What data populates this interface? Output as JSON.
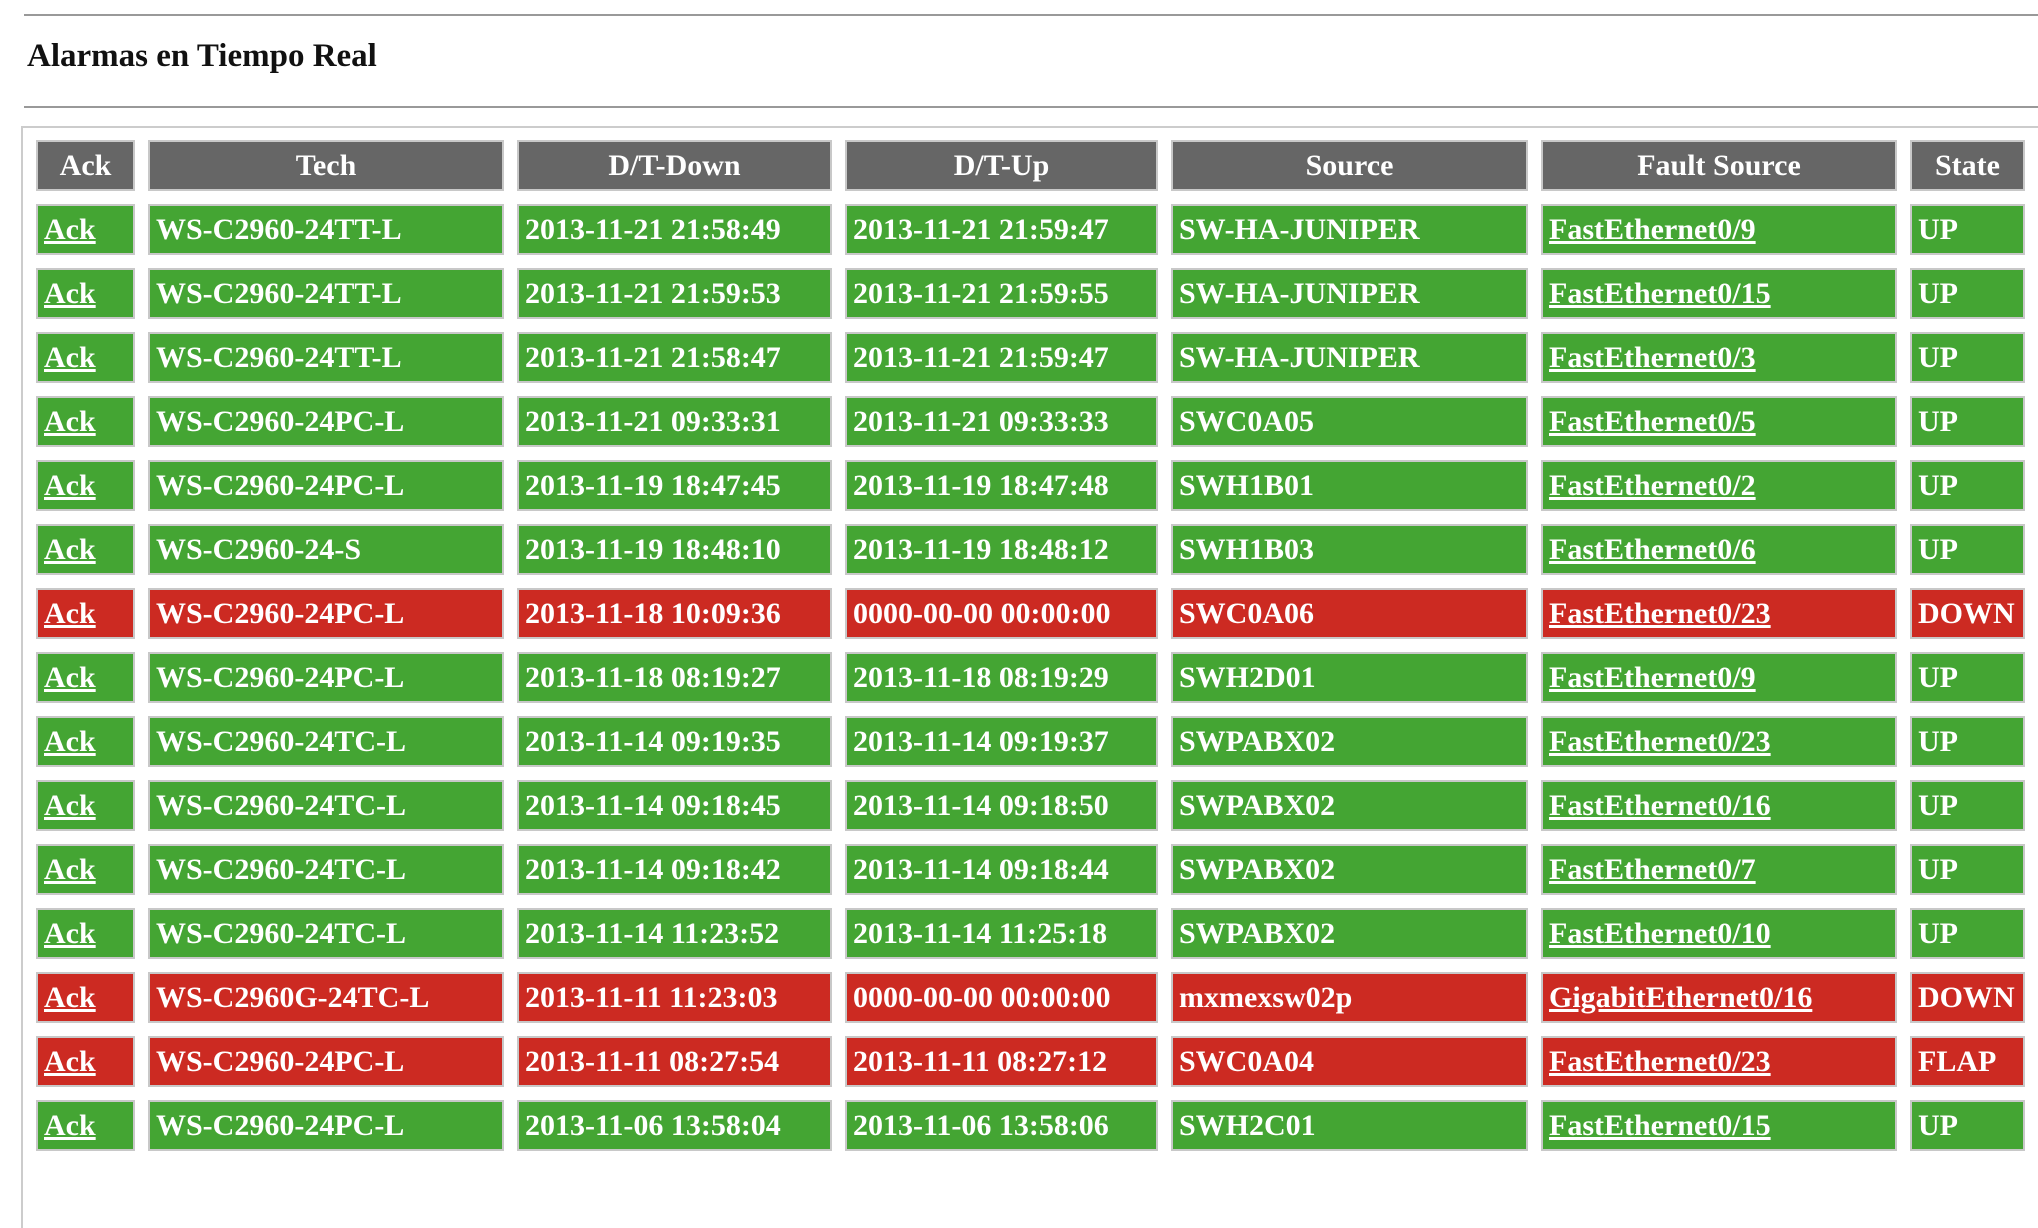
{
  "header": {
    "title": "Alarmas en Tiempo Real"
  },
  "table": {
    "columns": [
      "Ack",
      "Tech",
      "D/T-Down",
      "D/T-Up",
      "Source",
      "Fault Source",
      "State"
    ],
    "colors": {
      "header": "#666666",
      "UP": "#44a533",
      "DOWN": "#cc2a22",
      "FLAP": "#cc2a22"
    },
    "rows": [
      [
        "Ack",
        "WS-C2960-24TT-L",
        "2013-11-21 21:58:49",
        "2013-11-21 21:59:47",
        "SW-HA-JUNIPER",
        "FastEthernet0/9",
        "UP"
      ],
      [
        "Ack",
        "WS-C2960-24TT-L",
        "2013-11-21 21:59:53",
        "2013-11-21 21:59:55",
        "SW-HA-JUNIPER",
        "FastEthernet0/15",
        "UP"
      ],
      [
        "Ack",
        "WS-C2960-24TT-L",
        "2013-11-21 21:58:47",
        "2013-11-21 21:59:47",
        "SW-HA-JUNIPER",
        "FastEthernet0/3",
        "UP"
      ],
      [
        "Ack",
        "WS-C2960-24PC-L",
        "2013-11-21 09:33:31",
        "2013-11-21 09:33:33",
        "SWC0A05",
        "FastEthernet0/5",
        "UP"
      ],
      [
        "Ack",
        "WS-C2960-24PC-L",
        "2013-11-19 18:47:45",
        "2013-11-19 18:47:48",
        "SWH1B01",
        "FastEthernet0/2",
        "UP"
      ],
      [
        "Ack",
        "WS-C2960-24-S",
        "2013-11-19 18:48:10",
        "2013-11-19 18:48:12",
        "SWH1B03",
        "FastEthernet0/6",
        "UP"
      ],
      [
        "Ack",
        "WS-C2960-24PC-L",
        "2013-11-18 10:09:36",
        "0000-00-00 00:00:00",
        "SWC0A06",
        "FastEthernet0/23",
        "DOWN"
      ],
      [
        "Ack",
        "WS-C2960-24PC-L",
        "2013-11-18 08:19:27",
        "2013-11-18 08:19:29",
        "SWH2D01",
        "FastEthernet0/9",
        "UP"
      ],
      [
        "Ack",
        "WS-C2960-24TC-L",
        "2013-11-14 09:19:35",
        "2013-11-14 09:19:37",
        "SWPABX02",
        "FastEthernet0/23",
        "UP"
      ],
      [
        "Ack",
        "WS-C2960-24TC-L",
        "2013-11-14 09:18:45",
        "2013-11-14 09:18:50",
        "SWPABX02",
        "FastEthernet0/16",
        "UP"
      ],
      [
        "Ack",
        "WS-C2960-24TC-L",
        "2013-11-14 09:18:42",
        "2013-11-14 09:18:44",
        "SWPABX02",
        "FastEthernet0/7",
        "UP"
      ],
      [
        "Ack",
        "WS-C2960-24TC-L",
        "2013-11-14 11:23:52",
        "2013-11-14 11:25:18",
        "SWPABX02",
        "FastEthernet0/10",
        "UP"
      ],
      [
        "Ack",
        "WS-C2960G-24TC-L",
        "2013-11-11 11:23:03",
        "0000-00-00 00:00:00",
        "mxmexsw02p",
        "GigabitEthernet0/16",
        "DOWN"
      ],
      [
        "Ack",
        "WS-C2960-24PC-L",
        "2013-11-11 08:27:54",
        "2013-11-11 08:27:12",
        "SWC0A04",
        "FastEthernet0/23",
        "FLAP"
      ],
      [
        "Ack",
        "WS-C2960-24PC-L",
        "2013-11-06 13:58:04",
        "2013-11-06 13:58:06",
        "SWH2C01",
        "FastEthernet0/15",
        "UP"
      ]
    ]
  }
}
